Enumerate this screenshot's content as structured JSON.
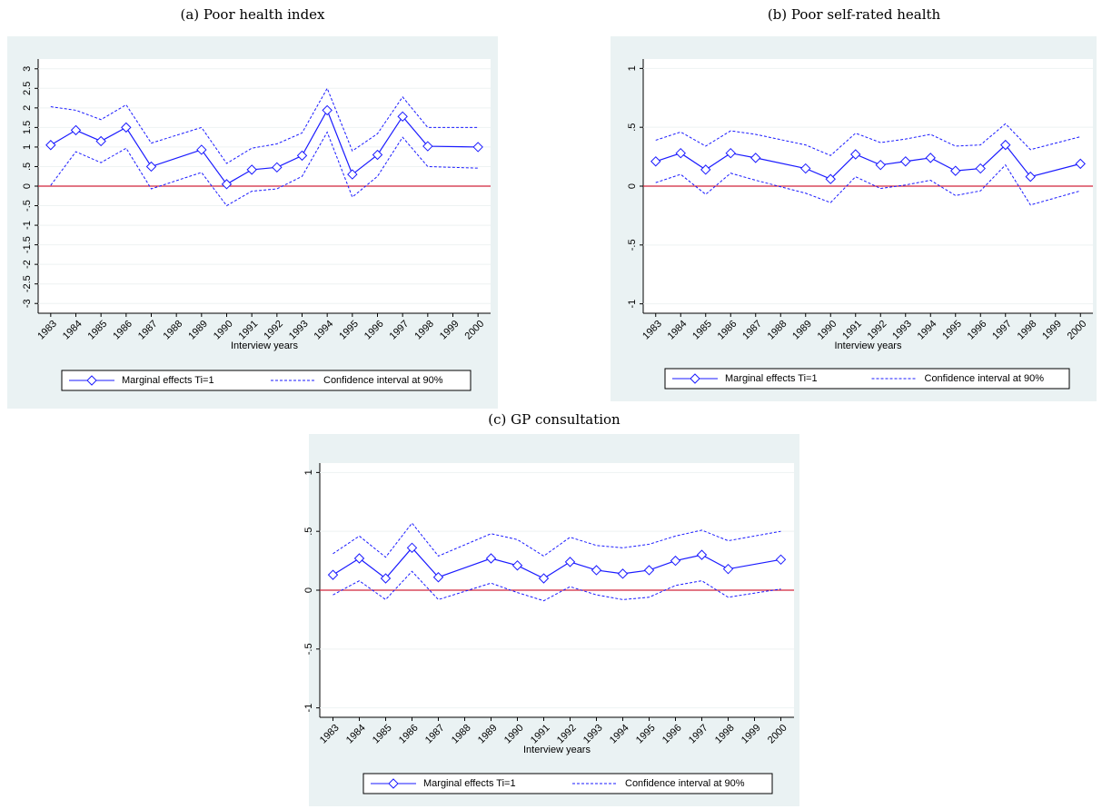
{
  "chart_data": [
    {
      "type": "line",
      "title": "(a) Poor health index",
      "xlabel": "Interview years",
      "x": [
        1983,
        1984,
        1985,
        1986,
        1987,
        1989,
        1990,
        1991,
        1992,
        1993,
        1994,
        1995,
        1996,
        1997,
        1998,
        2000
      ],
      "xlim": [
        1982.5,
        2000.5
      ],
      "xticks": [
        1983,
        1984,
        1985,
        1986,
        1987,
        1988,
        1989,
        1990,
        1991,
        1992,
        1993,
        1994,
        1995,
        1996,
        1997,
        1998,
        1999,
        2000
      ],
      "ylim": [
        -3.25,
        3.25
      ],
      "yticks": [
        -3,
        {
          "value": -2.5,
          "label": "-2.5"
        },
        -2,
        -1.5,
        -1,
        {
          "value": -0.5,
          "label": "-.5"
        },
        0,
        {
          "value": 0.5,
          "label": ".5"
        },
        1,
        1.5,
        2,
        2.5,
        3
      ],
      "grid": true,
      "refline": 0,
      "refline_color": "#d0253a",
      "legend": "bottom",
      "series": [
        {
          "name": "Marginal effects Ti=1",
          "color": "#1a1aff",
          "values": [
            1.05,
            1.43,
            1.15,
            1.5,
            0.5,
            0.93,
            0.05,
            0.42,
            0.48,
            0.78,
            1.94,
            0.3,
            0.8,
            1.78,
            1.02,
            1.0
          ]
        },
        {
          "name": "Confidence interval at 90%",
          "color": "#1a1aff",
          "upper": [
            2.03,
            1.94,
            1.7,
            2.08,
            1.1,
            1.5,
            0.58,
            0.97,
            1.08,
            1.36,
            2.5,
            0.9,
            1.34,
            2.28,
            1.5,
            1.5
          ],
          "lower": [
            0.02,
            0.88,
            0.6,
            0.97,
            -0.07,
            0.35,
            -0.5,
            -0.13,
            -0.07,
            0.25,
            1.38,
            -0.28,
            0.25,
            1.25,
            0.5,
            0.46
          ]
        }
      ]
    },
    {
      "type": "line",
      "title": "(b) Poor self-rated health",
      "xlabel": "Interview years",
      "x": [
        1983,
        1984,
        1985,
        1986,
        1987,
        1989,
        1990,
        1991,
        1992,
        1993,
        1994,
        1995,
        1996,
        1997,
        1998,
        2000
      ],
      "xlim": [
        1982.5,
        2000.5
      ],
      "xticks": [
        1983,
        1984,
        1985,
        1986,
        1987,
        1988,
        1989,
        1990,
        1991,
        1992,
        1993,
        1994,
        1995,
        1996,
        1997,
        1998,
        1999,
        2000
      ],
      "ylim": [
        -1.08,
        1.08
      ],
      "yticks": [
        -1,
        {
          "value": -0.5,
          "label": "-.5"
        },
        0,
        {
          "value": 0.5,
          "label": ".5"
        },
        1
      ],
      "grid": true,
      "refline": 0,
      "refline_color": "#d0253a",
      "legend": "bottom",
      "series": [
        {
          "name": "Marginal effects Ti=1",
          "color": "#1a1aff",
          "values": [
            0.21,
            0.28,
            0.14,
            0.28,
            0.24,
            0.15,
            0.06,
            0.27,
            0.18,
            0.21,
            0.24,
            0.13,
            0.15,
            0.35,
            0.08,
            0.19
          ]
        },
        {
          "name": "Confidence interval at 90%",
          "color": "#1a1aff",
          "upper": [
            0.39,
            0.46,
            0.34,
            0.47,
            0.44,
            0.35,
            0.26,
            0.45,
            0.37,
            0.4,
            0.44,
            0.34,
            0.35,
            0.53,
            0.31,
            0.42
          ],
          "lower": [
            0.03,
            0.1,
            -0.07,
            0.11,
            0.05,
            -0.06,
            -0.14,
            0.08,
            -0.02,
            0.01,
            0.05,
            -0.08,
            -0.04,
            0.18,
            -0.16,
            -0.04
          ]
        }
      ]
    },
    {
      "type": "line",
      "title": "(c) GP consultation",
      "xlabel": "Interview years",
      "x": [
        1983,
        1984,
        1985,
        1986,
        1987,
        1989,
        1990,
        1991,
        1992,
        1993,
        1994,
        1995,
        1996,
        1997,
        1998,
        2000
      ],
      "xlim": [
        1982.5,
        2000.5
      ],
      "xticks": [
        1983,
        1984,
        1985,
        1986,
        1987,
        1988,
        1989,
        1990,
        1991,
        1992,
        1993,
        1994,
        1995,
        1996,
        1997,
        1998,
        1999,
        2000
      ],
      "ylim": [
        -1.08,
        1.08
      ],
      "yticks": [
        -1,
        {
          "value": -0.5,
          "label": "-.5"
        },
        0,
        {
          "value": 0.5,
          "label": ".5"
        },
        1
      ],
      "grid": true,
      "refline": 0,
      "refline_color": "#d0253a",
      "legend": "bottom",
      "series": [
        {
          "name": "Marginal effects Ti=1",
          "color": "#1a1aff",
          "values": [
            0.13,
            0.27,
            0.1,
            0.36,
            0.11,
            0.27,
            0.21,
            0.1,
            0.24,
            0.17,
            0.14,
            0.17,
            0.25,
            0.3,
            0.18,
            0.26
          ]
        },
        {
          "name": "Confidence interval at 90%",
          "color": "#1a1aff",
          "upper": [
            0.31,
            0.46,
            0.28,
            0.57,
            0.29,
            0.48,
            0.43,
            0.29,
            0.45,
            0.38,
            0.36,
            0.39,
            0.46,
            0.51,
            0.42,
            0.5
          ],
          "lower": [
            -0.04,
            0.08,
            -0.08,
            0.16,
            -0.08,
            0.06,
            -0.02,
            -0.09,
            0.03,
            -0.04,
            -0.08,
            -0.06,
            0.04,
            0.08,
            -0.06,
            0.01
          ]
        }
      ]
    }
  ]
}
